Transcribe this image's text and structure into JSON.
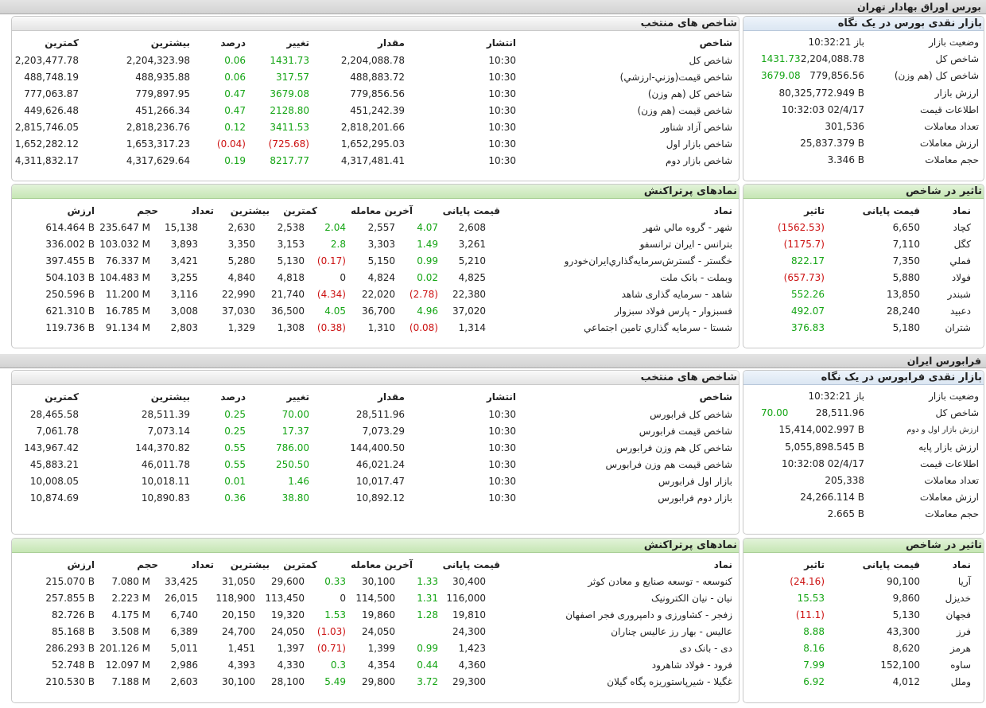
{
  "tehran": {
    "section_title": "بورس اوراق بهادار تهران",
    "glance": {
      "title": "بازار نقدی بورس در یک نگاه",
      "rows": [
        {
          "label": "وضعیت بازار",
          "value": "باز 10:32:21",
          "change": ""
        },
        {
          "label": "شاخص کل",
          "value": "2,204,088.78",
          "change": "1431.73",
          "dir": "pos"
        },
        {
          "label": "شاخص کل (هم وزن)",
          "value": "779,856.56",
          "change": "3679.08",
          "dir": "pos"
        },
        {
          "label": "ارزش بازار",
          "value": "80,325,772.949 B",
          "change": ""
        },
        {
          "label": "اطلاعات قیمت",
          "value": "10:32:03 02/4/17",
          "change": ""
        },
        {
          "label": "تعداد معاملات",
          "value": "301,536",
          "change": ""
        },
        {
          "label": "ارزش معاملات",
          "value": "25,837.379 B",
          "change": ""
        },
        {
          "label": "حجم معاملات",
          "value": "3.346 B",
          "change": ""
        }
      ]
    },
    "indices": {
      "title": "شاخص های منتخب",
      "columns": [
        "شاخص",
        "انتشار",
        "مقدار",
        "تغییر",
        "درصد",
        "بیشترین",
        "کمترین"
      ],
      "rows": [
        {
          "name": "شاخص کل",
          "time": "10:30",
          "value": "2,204,088.78",
          "change": "1431.73",
          "pct": "0.06",
          "high": "2,204,323.98",
          "low": "2,203,477.78",
          "dir": "pos"
        },
        {
          "name": "شاخص قيمت(وزني-ارزشي)",
          "time": "10:30",
          "value": "488,883.72",
          "change": "317.57",
          "pct": "0.06",
          "high": "488,935.88",
          "low": "488,748.19",
          "dir": "pos"
        },
        {
          "name": "شاخص کل (هم وزن)",
          "time": "10:30",
          "value": "779,856.56",
          "change": "3679.08",
          "pct": "0.47",
          "high": "779,897.95",
          "low": "777,063.87",
          "dir": "pos"
        },
        {
          "name": "شاخص قیمت (هم وزن)",
          "time": "10:30",
          "value": "451,242.39",
          "change": "2128.80",
          "pct": "0.47",
          "high": "451,266.34",
          "low": "449,626.48",
          "dir": "pos"
        },
        {
          "name": "شاخص آزاد شناور",
          "time": "10:30",
          "value": "2,818,201.66",
          "change": "3411.53",
          "pct": "0.12",
          "high": "2,818,236.76",
          "low": "2,815,746.05",
          "dir": "pos"
        },
        {
          "name": "شاخص بازار اول",
          "time": "10:30",
          "value": "1,652,295.03",
          "change": "(725.68)",
          "pct": "(0.04)",
          "high": "1,653,317.23",
          "low": "1,652,282.12",
          "dir": "neg"
        },
        {
          "name": "شاخص بازار دوم",
          "time": "10:30",
          "value": "4,317,481.41",
          "change": "8217.77",
          "pct": "0.19",
          "high": "4,317,629.64",
          "low": "4,311,832.17",
          "dir": "pos"
        }
      ]
    },
    "impact": {
      "title": "تاثیر در شاخص",
      "columns": [
        "نماد",
        "قیمت پایانی",
        "تاثیر"
      ],
      "rows": [
        {
          "symbol": "کچاد",
          "price": "6,650",
          "impact": "(1562.53)",
          "dir": "neg"
        },
        {
          "symbol": "کگل",
          "price": "7,110",
          "impact": "(1175.7)",
          "dir": "neg"
        },
        {
          "symbol": "فملي",
          "price": "7,350",
          "impact": "822.17",
          "dir": "pos"
        },
        {
          "symbol": "فولاد",
          "price": "5,880",
          "impact": "(657.73)",
          "dir": "neg"
        },
        {
          "symbol": "شبندر",
          "price": "13,850",
          "impact": "552.26",
          "dir": "pos"
        },
        {
          "symbol": "دعبید",
          "price": "28,240",
          "impact": "492.07",
          "dir": "pos"
        },
        {
          "symbol": "شتران",
          "price": "5,180",
          "impact": "376.83",
          "dir": "pos"
        }
      ]
    },
    "active": {
      "title": "نمادهای پرتراکنش",
      "columns": [
        "نماد",
        "قیمت پایانی",
        "آخرین معامله",
        "کمترین",
        "بیشترین",
        "تعداد",
        "حجم",
        "ارزش"
      ],
      "rows": [
        {
          "name": "شهر - گروه مالي شهر",
          "close": "2,608",
          "close_chg": "4.07",
          "close_dir": "pos",
          "last": "2,557",
          "last_chg": "2.04",
          "last_dir": "pos",
          "low": "2,538",
          "high": "2,630",
          "count": "15,138",
          "volume": "235.647 M",
          "value": "614.464 B"
        },
        {
          "name": "بترانس - ایران ترانسفو",
          "close": "3,261",
          "close_chg": "1.49",
          "close_dir": "pos",
          "last": "3,303",
          "last_chg": "2.8",
          "last_dir": "pos",
          "low": "3,153",
          "high": "3,350",
          "count": "3,893",
          "volume": "103.032 M",
          "value": "336.002 B"
        },
        {
          "name": "خگستر - گسترش‌سرمايه‌گذاري‌ايران‌خودرو",
          "close": "5,210",
          "close_chg": "0.99",
          "close_dir": "pos",
          "last": "5,150",
          "last_chg": "(0.17)",
          "last_dir": "neg",
          "low": "5,130",
          "high": "5,280",
          "count": "3,421",
          "volume": "76.337 M",
          "value": "397.455 B"
        },
        {
          "name": "وبملت - بانک ملت",
          "close": "4,825",
          "close_chg": "0.02",
          "close_dir": "pos",
          "last": "4,824",
          "last_chg": "0",
          "last_dir": "zero",
          "low": "4,818",
          "high": "4,840",
          "count": "3,255",
          "volume": "104.483 M",
          "value": "504.103 B"
        },
        {
          "name": "شاهد - سرمایه گذاری شاهد",
          "close": "22,380",
          "close_chg": "(2.78)",
          "close_dir": "neg",
          "last": "22,020",
          "last_chg": "(4.34)",
          "last_dir": "neg",
          "low": "21,740",
          "high": "22,990",
          "count": "3,116",
          "volume": "11.200 M",
          "value": "250.596 B"
        },
        {
          "name": "فسبزوار - پارس فولاد سبزوار",
          "close": "37,020",
          "close_chg": "4.96",
          "close_dir": "pos",
          "last": "36,700",
          "last_chg": "4.05",
          "last_dir": "pos",
          "low": "36,500",
          "high": "37,030",
          "count": "3,008",
          "volume": "16.785 M",
          "value": "621.310 B"
        },
        {
          "name": "شستا - سرمايه گذاري تامين اجتماعي",
          "close": "1,314",
          "close_chg": "(0.08)",
          "close_dir": "neg",
          "last": "1,310",
          "last_chg": "(0.38)",
          "last_dir": "neg",
          "low": "1,308",
          "high": "1,329",
          "count": "2,803",
          "volume": "91.134 M",
          "value": "119.736 B"
        }
      ]
    }
  },
  "farabourse": {
    "section_title": "فرابورس ایران",
    "glance": {
      "title": "بازار نقدی فرابورس در یک نگاه",
      "rows": [
        {
          "label": "وضعیت بازار",
          "value": "باز 10:32:21",
          "change": ""
        },
        {
          "label": "شاخص کل",
          "value": "28,511.96",
          "change": "70.00",
          "dir": "pos"
        },
        {
          "label": "ارزش بازار اول و دوم",
          "value": "15,414,002.997 B",
          "change": "",
          "small": true
        },
        {
          "label": "ارزش بازار پایه",
          "value": "5,055,898.545 B",
          "change": ""
        },
        {
          "label": "اطلاعات قیمت",
          "value": "10:32:08 02/4/17",
          "change": ""
        },
        {
          "label": "تعداد معاملات",
          "value": "205,338",
          "change": ""
        },
        {
          "label": "ارزش معاملات",
          "value": "24,266.114 B",
          "change": ""
        },
        {
          "label": "حجم معاملات",
          "value": "2.665 B",
          "change": ""
        }
      ]
    },
    "indices": {
      "title": "شاخص های منتخب",
      "columns": [
        "شاخص",
        "انتشار",
        "مقدار",
        "تغییر",
        "درصد",
        "بیشترین",
        "کمترین"
      ],
      "rows": [
        {
          "name": "شاخص کل فرابورس",
          "time": "10:30",
          "value": "28,511.96",
          "change": "70.00",
          "pct": "0.25",
          "high": "28,511.39",
          "low": "28,465.58",
          "dir": "pos"
        },
        {
          "name": "شاخص قیمت فرابورس",
          "time": "10:30",
          "value": "7,073.29",
          "change": "17.37",
          "pct": "0.25",
          "high": "7,073.14",
          "low": "7,061.78",
          "dir": "pos"
        },
        {
          "name": "شاخص کل هم وزن فرابورس",
          "time": "10:30",
          "value": "144,400.50",
          "change": "786.00",
          "pct": "0.55",
          "high": "144,370.82",
          "low": "143,967.42",
          "dir": "pos"
        },
        {
          "name": "شاخص قیمت هم وزن فرابورس",
          "time": "10:30",
          "value": "46,021.24",
          "change": "250.50",
          "pct": "0.55",
          "high": "46,011.78",
          "low": "45,883.21",
          "dir": "pos"
        },
        {
          "name": "بازار اول فرابورس",
          "time": "10:30",
          "value": "10,017.47",
          "change": "1.46",
          "pct": "0.01",
          "high": "10,018.11",
          "low": "10,008.05",
          "dir": "pos"
        },
        {
          "name": "بازار دوم فرابورس",
          "time": "10:30",
          "value": "10,892.12",
          "change": "38.80",
          "pct": "0.36",
          "high": "10,890.83",
          "low": "10,874.69",
          "dir": "pos"
        }
      ]
    },
    "impact": {
      "title": "تاثیر در شاخص",
      "columns": [
        "نماد",
        "قیمت پایانی",
        "تاثیر"
      ],
      "rows": [
        {
          "symbol": "آریا",
          "price": "90,100",
          "impact": "(24.16)",
          "dir": "neg"
        },
        {
          "symbol": "خدیزل",
          "price": "9,860",
          "impact": "15.53",
          "dir": "pos"
        },
        {
          "symbol": "فجهان",
          "price": "5,130",
          "impact": "(11.1)",
          "dir": "neg"
        },
        {
          "symbol": "فرز",
          "price": "43,300",
          "impact": "8.88",
          "dir": "pos"
        },
        {
          "symbol": "هرمز",
          "price": "8,620",
          "impact": "8.16",
          "dir": "pos"
        },
        {
          "symbol": "ساوه",
          "price": "152,100",
          "impact": "7.99",
          "dir": "pos"
        },
        {
          "symbol": "وملل",
          "price": "4,012",
          "impact": "6.92",
          "dir": "pos"
        }
      ]
    },
    "active": {
      "title": "نمادهای پرتراکنش",
      "columns": [
        "نماد",
        "قیمت پایانی",
        "آخرین معامله",
        "کمترین",
        "بیشترین",
        "تعداد",
        "حجم",
        "ارزش"
      ],
      "rows": [
        {
          "name": "کنوسعه - توسعه صنایع و معادن کوثر",
          "close": "30,400",
          "close_chg": "1.33",
          "close_dir": "pos",
          "last": "30,100",
          "last_chg": "0.33",
          "last_dir": "pos",
          "low": "29,600",
          "high": "31,050",
          "count": "33,425",
          "volume": "7.080 M",
          "value": "215.070 B"
        },
        {
          "name": "نیان - نیان الکترونیک",
          "close": "116,000",
          "close_chg": "1.31",
          "close_dir": "pos",
          "last": "114,500",
          "last_chg": "0",
          "last_dir": "zero",
          "low": "113,450",
          "high": "118,900",
          "count": "26,015",
          "volume": "2.223 M",
          "value": "257.855 B"
        },
        {
          "name": "زفجر - کشاورزی و دامپروری فجر اصفهان",
          "close": "19,810",
          "close_chg": "1.28",
          "close_dir": "pos",
          "last": "19,860",
          "last_chg": "1.53",
          "last_dir": "pos",
          "low": "19,320",
          "high": "20,150",
          "count": "6,740",
          "volume": "4.175 M",
          "value": "82.726 B"
        },
        {
          "name": "عالیس - بهار رز عالیس چناران",
          "close": "24,300",
          "close_chg": "",
          "close_dir": "zero",
          "last": "24,050",
          "last_chg": "(1.03)",
          "last_dir": "neg",
          "low": "24,050",
          "high": "24,700",
          "count": "6,389",
          "volume": "3.508 M",
          "value": "85.168 B"
        },
        {
          "name": "دی - بانک دی",
          "close": "1,423",
          "close_chg": "0.99",
          "close_dir": "pos",
          "last": "1,399",
          "last_chg": "(0.71)",
          "last_dir": "neg",
          "low": "1,397",
          "high": "1,451",
          "count": "5,011",
          "volume": "201.126 M",
          "value": "286.293 B"
        },
        {
          "name": "فرود - فولاد شاهرود",
          "close": "4,360",
          "close_chg": "0.44",
          "close_dir": "pos",
          "last": "4,354",
          "last_chg": "0.3",
          "last_dir": "pos",
          "low": "4,330",
          "high": "4,393",
          "count": "2,986",
          "volume": "12.097 M",
          "value": "52.748 B"
        },
        {
          "name": "غگیلا - شیرپاستوریزه پگاه گیلان",
          "close": "29,300",
          "close_chg": "3.72",
          "close_dir": "pos",
          "last": "29,800",
          "last_chg": "5.49",
          "last_dir": "pos",
          "low": "28,100",
          "high": "30,100",
          "count": "2,603",
          "volume": "7.188 M",
          "value": "210.530 B"
        }
      ]
    }
  }
}
